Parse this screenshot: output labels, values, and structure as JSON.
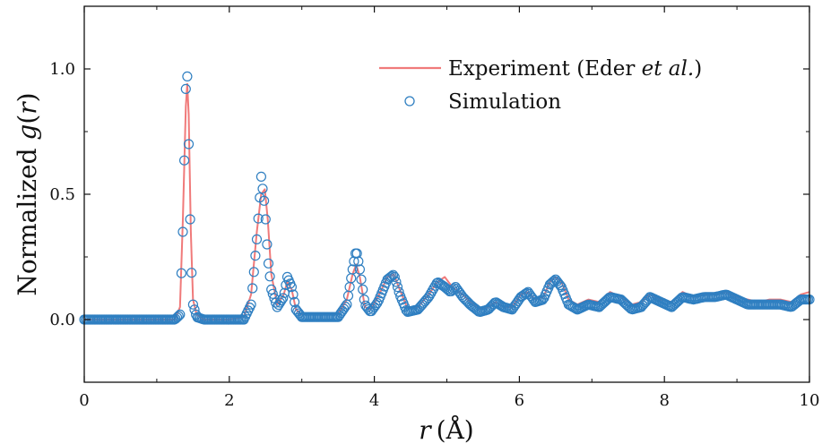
{
  "chart_data": {
    "type": "line",
    "xlabel_var": "r",
    "xlabel_unit": "(Å)",
    "ylabel_prefix": "Normalized ",
    "ylabel_func": "g",
    "ylabel_arg_open": "(",
    "ylabel_var": "r",
    "ylabel_arg_close": ")",
    "xlim": [
      0,
      10
    ],
    "ylim": [
      -0.25,
      1.25
    ],
    "xticks": [
      0,
      2,
      4,
      6,
      8,
      10
    ],
    "xtick_labels": [
      "0",
      "2",
      "4",
      "6",
      "8",
      "10"
    ],
    "yticks": [
      0.0,
      0.5,
      1.0
    ],
    "ytick_labels": [
      "0.0",
      "0.5",
      "1.0"
    ],
    "grid": false,
    "legend_position": "top-right",
    "series": [
      {
        "name_main": "Experiment (Eder ",
        "name_italic": "et al.",
        "name_close": ")",
        "style": "line",
        "color": "#f07a7a",
        "x": [
          0,
          1.25,
          1.32,
          1.36,
          1.4,
          1.42,
          1.44,
          1.47,
          1.5,
          1.55,
          1.65,
          2.0,
          2.2,
          2.3,
          2.38,
          2.44,
          2.49,
          2.53,
          2.58,
          2.66,
          2.75,
          2.8,
          2.86,
          2.92,
          3.0,
          3.2,
          3.5,
          3.62,
          3.7,
          3.75,
          3.8,
          3.87,
          3.95,
          4.05,
          4.18,
          4.27,
          4.35,
          4.45,
          4.6,
          4.75,
          4.87,
          4.97,
          5.05,
          5.12,
          5.22,
          5.32,
          5.45,
          5.57,
          5.67,
          5.78,
          5.9,
          6.02,
          6.12,
          6.22,
          6.33,
          6.42,
          6.5,
          6.58,
          6.68,
          6.8,
          6.95,
          7.1,
          7.25,
          7.4,
          7.55,
          7.68,
          7.8,
          7.95,
          8.1,
          8.25,
          8.4,
          8.55,
          8.7,
          8.85,
          9.0,
          9.15,
          9.3,
          9.45,
          9.6,
          9.75,
          9.88,
          10.0
        ],
        "y": [
          0.0,
          0.0,
          0.05,
          0.4,
          0.85,
          0.94,
          0.82,
          0.35,
          0.08,
          0.02,
          0.0,
          0.0,
          0.01,
          0.1,
          0.35,
          0.5,
          0.52,
          0.4,
          0.18,
          0.06,
          0.1,
          0.15,
          0.12,
          0.04,
          0.02,
          0.02,
          0.02,
          0.08,
          0.18,
          0.22,
          0.17,
          0.05,
          0.04,
          0.09,
          0.17,
          0.18,
          0.12,
          0.05,
          0.05,
          0.1,
          0.15,
          0.17,
          0.14,
          0.12,
          0.1,
          0.07,
          0.04,
          0.05,
          0.07,
          0.05,
          0.05,
          0.1,
          0.11,
          0.08,
          0.09,
          0.15,
          0.17,
          0.15,
          0.08,
          0.06,
          0.08,
          0.07,
          0.11,
          0.09,
          0.06,
          0.07,
          0.1,
          0.08,
          0.07,
          0.11,
          0.09,
          0.1,
          0.1,
          0.11,
          0.09,
          0.08,
          0.07,
          0.08,
          0.08,
          0.07,
          0.1,
          0.11
        ]
      },
      {
        "name": "Simulation",
        "style": "circles",
        "color": "#2f7fc1",
        "x": [
          0,
          1.25,
          1.32,
          1.36,
          1.4,
          1.42,
          1.44,
          1.47,
          1.5,
          1.55,
          1.65,
          2.0,
          2.2,
          2.3,
          2.38,
          2.44,
          2.49,
          2.53,
          2.58,
          2.66,
          2.75,
          2.8,
          2.86,
          2.92,
          3.0,
          3.2,
          3.5,
          3.62,
          3.7,
          3.75,
          3.8,
          3.87,
          3.95,
          4.05,
          4.18,
          4.27,
          4.35,
          4.45,
          4.6,
          4.75,
          4.87,
          4.97,
          5.05,
          5.12,
          5.22,
          5.32,
          5.45,
          5.57,
          5.67,
          5.78,
          5.9,
          6.02,
          6.12,
          6.22,
          6.33,
          6.42,
          6.5,
          6.58,
          6.68,
          6.8,
          6.95,
          7.1,
          7.25,
          7.4,
          7.55,
          7.68,
          7.8,
          7.95,
          8.1,
          8.25,
          8.4,
          8.55,
          8.7,
          8.85,
          9.0,
          9.15,
          9.3,
          9.45,
          9.6,
          9.75,
          9.88,
          10.0
        ],
        "y": [
          0.0,
          0.0,
          0.02,
          0.35,
          0.92,
          0.97,
          0.7,
          0.25,
          0.06,
          0.01,
          0.0,
          0.0,
          0.0,
          0.06,
          0.32,
          0.57,
          0.45,
          0.25,
          0.12,
          0.05,
          0.09,
          0.17,
          0.13,
          0.04,
          0.01,
          0.01,
          0.01,
          0.06,
          0.2,
          0.28,
          0.2,
          0.06,
          0.03,
          0.07,
          0.16,
          0.18,
          0.1,
          0.03,
          0.04,
          0.09,
          0.15,
          0.13,
          0.11,
          0.13,
          0.09,
          0.06,
          0.03,
          0.04,
          0.07,
          0.05,
          0.04,
          0.09,
          0.11,
          0.07,
          0.08,
          0.14,
          0.16,
          0.13,
          0.06,
          0.04,
          0.06,
          0.05,
          0.09,
          0.08,
          0.04,
          0.05,
          0.09,
          0.07,
          0.05,
          0.09,
          0.08,
          0.09,
          0.09,
          0.1,
          0.08,
          0.06,
          0.06,
          0.06,
          0.06,
          0.05,
          0.08,
          0.08
        ]
      }
    ]
  }
}
